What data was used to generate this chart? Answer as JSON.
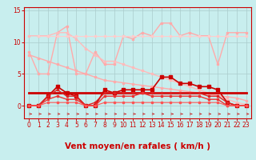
{
  "bg_color": "#c8eeee",
  "grid_color": "#aacccc",
  "xlabel": "Vent moyen/en rafales ( km/h )",
  "ylim_top": 15,
  "yticks": [
    0,
    5,
    10,
    15
  ],
  "xticks": [
    0,
    1,
    2,
    3,
    4,
    5,
    6,
    7,
    8,
    9,
    10,
    11,
    12,
    13,
    14,
    15,
    16,
    17,
    18,
    19,
    20,
    21,
    22,
    23
  ],
  "series": [
    {
      "x": [
        0,
        1,
        2,
        3,
        4,
        5,
        6,
        7,
        8,
        9,
        10,
        11,
        12,
        13,
        14,
        15,
        16,
        17,
        18,
        19,
        20,
        21,
        22,
        23
      ],
      "y": [
        8.5,
        5.0,
        5.0,
        11.5,
        12.5,
        5.0,
        5.0,
        8.5,
        6.5,
        6.5,
        11.0,
        10.5,
        11.5,
        11.0,
        13.0,
        13.0,
        11.0,
        11.5,
        11.0,
        11.0,
        6.5,
        11.5,
        11.5,
        11.5
      ],
      "color": "#ffaaaa",
      "lw": 1.0,
      "marker": "s",
      "ms": 2.0
    },
    {
      "x": [
        0,
        1,
        2,
        3,
        4,
        5,
        6,
        7,
        8,
        9,
        10,
        11,
        12,
        13,
        14,
        15,
        16,
        17,
        18,
        19,
        20,
        21,
        22,
        23
      ],
      "y": [
        11.0,
        11.0,
        11.0,
        11.5,
        11.5,
        10.5,
        9.0,
        8.0,
        7.0,
        7.0,
        6.5,
        6.0,
        5.5,
        5.0,
        4.5,
        4.0,
        3.5,
        3.0,
        2.5,
        2.0,
        1.5,
        1.0,
        0.5,
        0.2
      ],
      "color": "#ffbbbb",
      "lw": 1.0,
      "marker": "s",
      "ms": 2.0
    },
    {
      "x": [
        1,
        2,
        3,
        4,
        5,
        6,
        7,
        8,
        9,
        10,
        11,
        12,
        13,
        14,
        15,
        16,
        17,
        18,
        19,
        20,
        21,
        22,
        23
      ],
      "y": [
        11.0,
        11.0,
        11.0,
        11.0,
        11.0,
        11.0,
        11.0,
        11.0,
        11.0,
        11.0,
        11.0,
        11.0,
        11.0,
        11.0,
        11.0,
        11.0,
        11.0,
        11.0,
        11.0,
        11.0,
        11.0,
        11.0,
        11.0
      ],
      "color": "#ffcccc",
      "lw": 0.8,
      "marker": "s",
      "ms": 1.8
    },
    {
      "x": [
        0,
        1,
        2,
        3,
        4,
        5,
        6,
        7,
        8,
        9,
        10,
        11,
        12,
        13,
        14,
        15,
        16,
        17,
        18,
        19,
        20,
        21,
        22,
        23
      ],
      "y": [
        8.0,
        7.5,
        7.0,
        6.5,
        6.0,
        5.5,
        5.0,
        4.5,
        4.0,
        3.8,
        3.6,
        3.4,
        3.2,
        3.0,
        2.8,
        2.6,
        2.4,
        2.2,
        2.0,
        1.8,
        1.6,
        1.4,
        1.2,
        0.8
      ],
      "color": "#ffaaaa",
      "lw": 1.0,
      "marker": "s",
      "ms": 2.0
    },
    {
      "x": [
        0,
        1,
        2,
        3,
        4,
        5,
        6,
        7,
        8,
        9,
        10,
        11,
        12,
        13,
        14,
        15,
        16,
        17,
        18,
        19,
        20,
        21,
        22,
        23
      ],
      "y": [
        0.0,
        0.0,
        1.5,
        3.0,
        2.0,
        1.5,
        0.0,
        0.0,
        2.5,
        2.0,
        2.5,
        2.5,
        2.5,
        2.5,
        4.5,
        4.5,
        3.5,
        3.5,
        3.0,
        3.0,
        2.5,
        0.5,
        0.0,
        0.0
      ],
      "color": "#cc0000",
      "lw": 1.2,
      "marker": "s",
      "ms": 2.2
    },
    {
      "x": [
        0,
        1,
        2,
        3,
        4,
        5,
        6,
        7,
        8,
        9,
        10,
        11,
        12,
        13,
        14,
        15,
        16,
        17,
        18,
        19,
        20,
        21,
        22,
        23
      ],
      "y": [
        2.0,
        2.0,
        2.0,
        2.0,
        2.0,
        2.0,
        2.0,
        2.0,
        2.0,
        2.0,
        2.0,
        2.0,
        2.0,
        2.0,
        2.0,
        2.0,
        2.0,
        2.0,
        2.0,
        2.0,
        2.0,
        2.0,
        2.0,
        2.0
      ],
      "color": "#cc0000",
      "lw": 2.0,
      "marker": null,
      "ms": 0
    },
    {
      "x": [
        0,
        1,
        2,
        3,
        4,
        5,
        6,
        7,
        8,
        9,
        10,
        11,
        12,
        13,
        14,
        15,
        16,
        17,
        18,
        19,
        20,
        21,
        22,
        23
      ],
      "y": [
        0.0,
        0.0,
        1.5,
        2.5,
        1.5,
        1.5,
        0.0,
        0.5,
        2.0,
        2.0,
        2.0,
        2.0,
        2.0,
        2.0,
        2.0,
        2.0,
        2.0,
        2.0,
        2.0,
        1.5,
        1.5,
        0.5,
        0.0,
        0.0
      ],
      "color": "#dd2222",
      "lw": 1.0,
      "marker": "s",
      "ms": 2.0
    },
    {
      "x": [
        0,
        1,
        2,
        3,
        4,
        5,
        6,
        7,
        8,
        9,
        10,
        11,
        12,
        13,
        14,
        15,
        16,
        17,
        18,
        19,
        20,
        21,
        22,
        23
      ],
      "y": [
        0.0,
        0.0,
        1.0,
        1.5,
        1.0,
        1.0,
        0.0,
        0.0,
        1.5,
        1.5,
        1.5,
        1.5,
        2.0,
        1.5,
        1.5,
        1.5,
        1.5,
        1.5,
        1.5,
        1.0,
        1.0,
        0.0,
        0.0,
        0.0
      ],
      "color": "#ee3333",
      "lw": 1.0,
      "marker": "s",
      "ms": 2.0
    },
    {
      "x": [
        0,
        1,
        2,
        3,
        4,
        5,
        6,
        7,
        8,
        9,
        10,
        11,
        12,
        13,
        14,
        15,
        16,
        17,
        18,
        19,
        20,
        21,
        22,
        23
      ],
      "y": [
        0.0,
        0.0,
        0.5,
        0.5,
        0.5,
        0.5,
        0.0,
        0.0,
        0.5,
        0.5,
        0.5,
        0.5,
        0.5,
        0.5,
        0.5,
        0.5,
        0.5,
        0.5,
        0.5,
        0.5,
        0.5,
        0.0,
        0.0,
        0.0
      ],
      "color": "#ff5555",
      "lw": 0.8,
      "marker": "s",
      "ms": 1.8
    }
  ],
  "arrow_color": "#cc2222",
  "tick_color": "#cc0000",
  "tick_fontsize": 5.5,
  "label_fontsize": 7.5,
  "spine_color": "#cc0000"
}
